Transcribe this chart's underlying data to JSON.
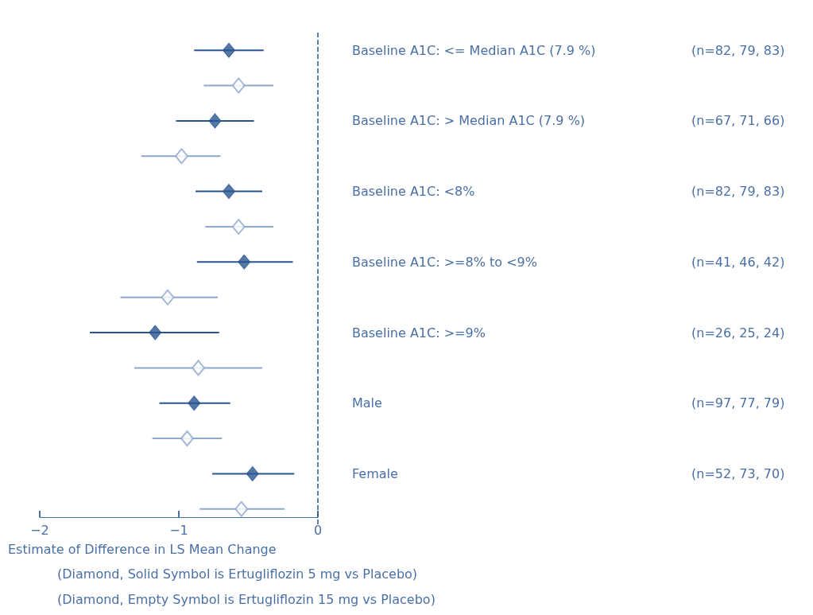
{
  "chart_data": {
    "type": "scatter",
    "orientation": "horizontal",
    "xlabel": "Estimate of Difference in LS Mean Change",
    "annotations": [
      "(Diamond, Solid Symbol is Ertugliflozin 5 mg vs Placebo)",
      "(Diamond, Empty Symbol is Ertugliflozin 15 mg vs Placebo)"
    ],
    "categories": [
      "Baseline A1C: <= Median A1C (7.9 %)",
      null,
      "Baseline A1C: > Median A1C (7.9 %)",
      null,
      "Baseline A1C: <8%",
      null,
      "Baseline A1C: >=8% to <9%",
      null,
      "Baseline A1C: >=9%",
      null,
      "Male",
      null,
      "Female",
      null
    ],
    "y2_categories": [
      "(n=82, 79, 83)",
      null,
      "(n=67, 71, 66)",
      null,
      "(n=82, 79, 83)",
      null,
      "(n=41, 46, 42)",
      null,
      "(n=26, 25, 24)",
      null,
      "(n=97, 77, 79)",
      null,
      "(n=52, 73, 70)",
      null
    ],
    "series": [
      {
        "color": "#2a5590",
        "marker": "diamond",
        "values": [
          -0.64,
          null,
          -0.74,
          null,
          -0.64,
          null,
          -0.53,
          null,
          -1.17,
          null,
          -0.89,
          null,
          -0.47,
          null
        ],
        "errors": [
          [
            -0.89,
            -0.39
          ],
          null,
          [
            -1.02,
            -0.46
          ],
          null,
          [
            -0.88,
            -0.4
          ],
          null,
          [
            -0.87,
            -0.18
          ],
          null,
          [
            -1.64,
            -0.71
          ],
          null,
          [
            -1.14,
            -0.63
          ],
          null,
          [
            -0.76,
            -0.17
          ],
          null
        ]
      },
      {
        "color": "#8fa8cc",
        "marker": "diamond",
        "values": [
          null,
          -0.57,
          null,
          -0.98,
          null,
          -0.57,
          null,
          -1.08,
          null,
          -0.86,
          null,
          -0.94,
          null,
          -0.55
        ],
        "errors": [
          null,
          [
            -0.82,
            -0.32
          ],
          null,
          [
            -1.27,
            -0.7
          ],
          null,
          [
            -0.81,
            -0.32
          ],
          null,
          [
            -1.42,
            -0.72
          ],
          null,
          [
            -1.32,
            -0.4
          ],
          null,
          [
            -1.19,
            -0.69
          ],
          null,
          [
            -0.85,
            -0.24
          ]
        ]
      }
    ],
    "xlim": [
      -2,
      0
    ],
    "xticks": [
      {
        "value": -2,
        "label": "−2"
      },
      {
        "value": -1,
        "label": "−1"
      },
      0
    ],
    "ref_lines": [
      {
        "axis": "x",
        "value": 0,
        "line_style": "dashed"
      }
    ],
    "grid": false
  }
}
